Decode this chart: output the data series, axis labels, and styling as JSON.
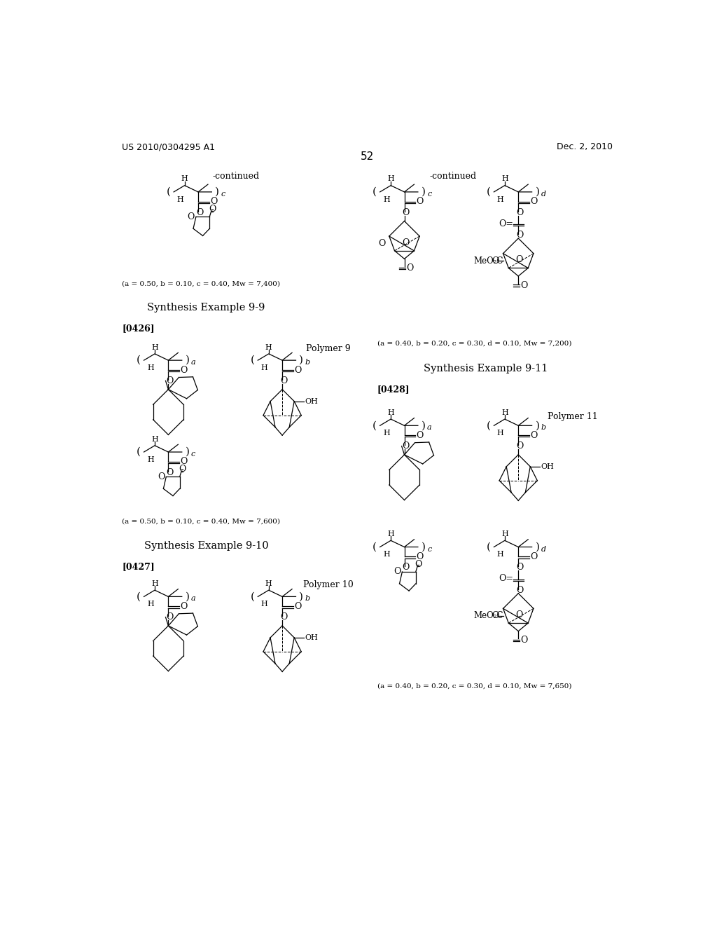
{
  "page_header_left": "US 2010/0304295 A1",
  "page_header_right": "Dec. 2, 2010",
  "page_number": "52",
  "background_color": "#ffffff",
  "captions": {
    "top_left": "(a = 0.50, b = 0.10, c = 0.40, Mw = 7,400)",
    "top_right": "(a = 0.40, b = 0.20, c = 0.30, d = 0.10, Mw = 7,200)",
    "poly9": "(a = 0.50, b = 0.10, c = 0.40, Mw = 7,600)",
    "poly11": "(a = 0.40, b = 0.20, c = 0.30, d = 0.10, Mw = 7,650)"
  },
  "titles": {
    "ex9_9": "Synthesis Example 9-9",
    "ex9_10": "Synthesis Example 9-10",
    "ex9_11": "Synthesis Example 9-11"
  },
  "paragraphs": {
    "p0426": "[0426]",
    "p0427": "[0427]",
    "p0428": "[0428]"
  },
  "polymer_labels": {
    "p9": "Polymer 9",
    "p10": "Polymer 10",
    "p11": "Polymer 11"
  }
}
